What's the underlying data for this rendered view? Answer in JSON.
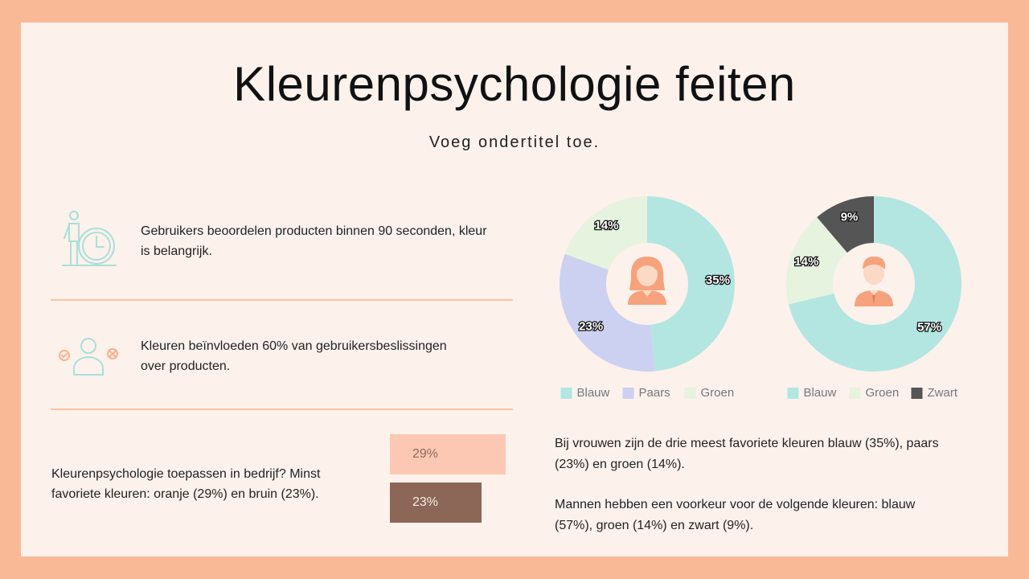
{
  "title": "Kleurenpsychologie feiten",
  "subtitle": "Voeg ondertitel toe.",
  "facts": [
    {
      "text_line1": "Gebruikers beoordelen producten binnen 90 seconden, kleur",
      "text_line2": "is belangrijk."
    },
    {
      "text_line1": "Kleuren beïnvloeden 60% van gebruikersbeslissingen",
      "text_line2": "over producten."
    },
    {
      "text_line1": "Kleurenpsychologie toepassen in bedrijf? Minst",
      "text_line2": "favoriete kleuren: oranje (29%) en bruin (23%)."
    }
  ],
  "least_favorite_bars": [
    {
      "label": "29%",
      "value": 29,
      "color": "#fdc8b3"
    },
    {
      "label": "23%",
      "value": 23,
      "color": "#8c6657"
    }
  ],
  "right_text": {
    "women_line1": "Bij vrouwen zijn de drie meest favoriete kleuren blauw (35%), paars",
    "women_line2": "(23%) en groen (14%).",
    "men_line1": "Mannen hebben een voorkeur voor de volgende kleuren: blauw",
    "men_line2": "(57%), groen (14%) en zwart (9%)."
  },
  "chart_data": [
    {
      "type": "pie",
      "subtype": "donut",
      "center_icon": "woman-avatar-icon",
      "series": [
        {
          "name": "Blauw",
          "value": 35,
          "label": "35%",
          "color": "#b3e6e0"
        },
        {
          "name": "Paars",
          "value": 23,
          "label": "23%",
          "color": "#ccd1f2"
        },
        {
          "name": "Groen",
          "value": 14,
          "label": "14%",
          "color": "#e6f3de"
        }
      ],
      "legend": "bottom"
    },
    {
      "type": "pie",
      "subtype": "donut",
      "center_icon": "man-avatar-icon",
      "series": [
        {
          "name": "Blauw",
          "value": 57,
          "label": "57%",
          "color": "#b3e6e0"
        },
        {
          "name": "Groen",
          "value": 14,
          "label": "14%",
          "color": "#e6f3de"
        },
        {
          "name": "Zwart",
          "value": 9,
          "label": "9%",
          "color": "#555555"
        }
      ],
      "legend": "bottom"
    }
  ]
}
